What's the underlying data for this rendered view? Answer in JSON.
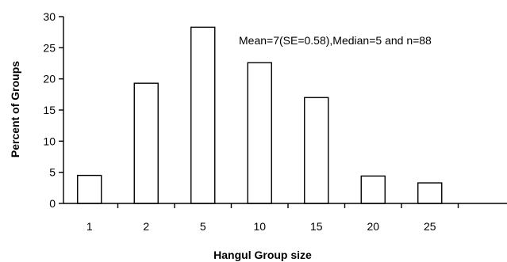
{
  "chart_data": {
    "type": "bar",
    "categories": [
      "1",
      "2",
      "5",
      "10",
      "15",
      "20",
      "25"
    ],
    "values": [
      4.5,
      19.3,
      28.3,
      22.6,
      17.0,
      4.4,
      3.3
    ],
    "xlabel": "Hangul Group size",
    "ylabel": "Percent of Groups",
    "ylim": [
      0,
      30
    ],
    "yticks": [
      0,
      5,
      10,
      15,
      20,
      25,
      30
    ],
    "annotation": "Mean=7(SE=0.58),Median=5 and n=88",
    "grid": false,
    "bar_fill": "#ffffff",
    "bar_stroke": "#000000"
  }
}
